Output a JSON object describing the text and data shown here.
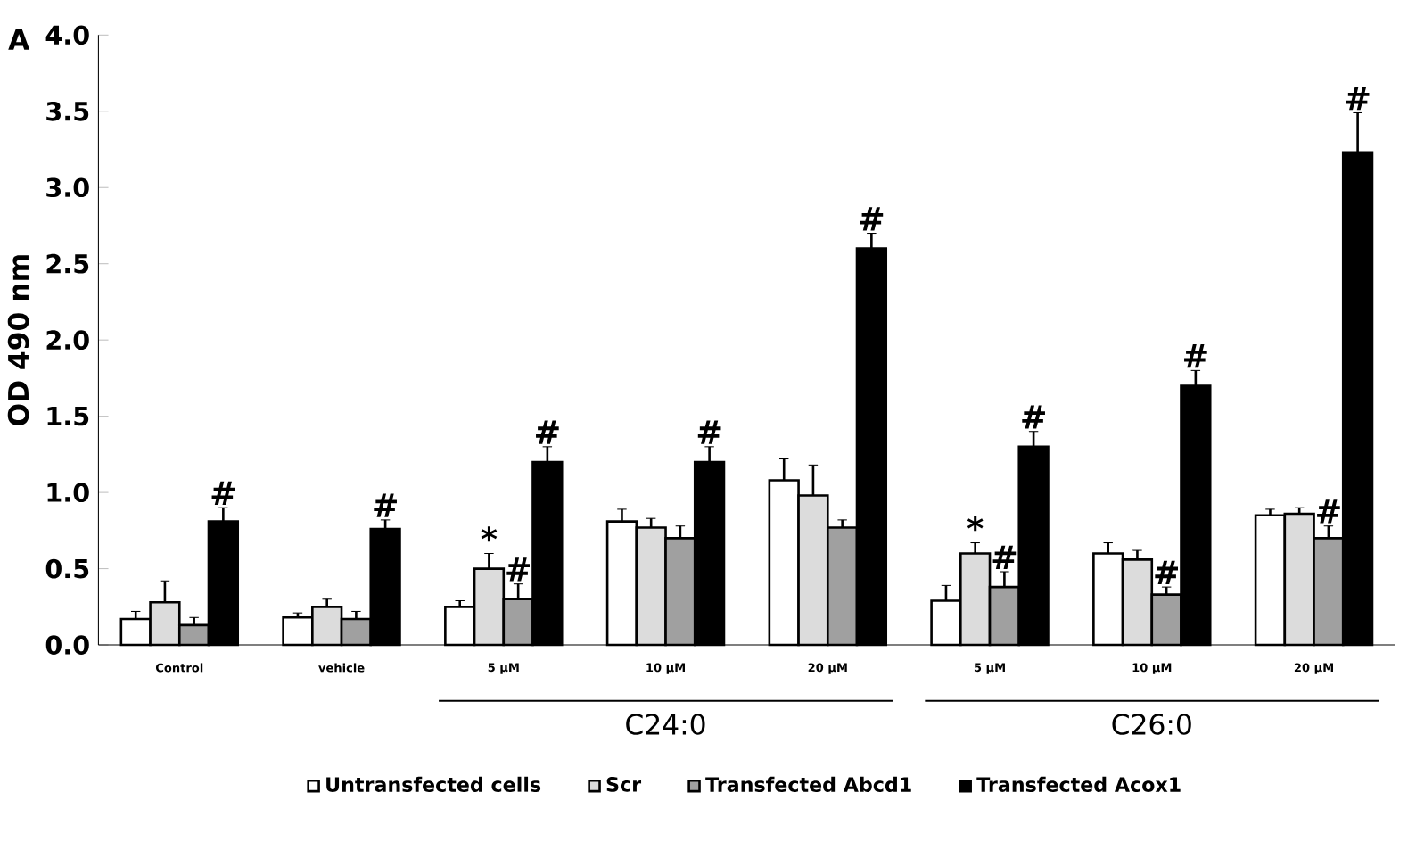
{
  "chart_data": {
    "type": "bar",
    "ylabel": "OD 490 nm",
    "categories": [
      "Control",
      "vehicle",
      "5 µM",
      "10 µM",
      "20 µM",
      "5 µM",
      "10 µM",
      "20 µM"
    ],
    "series": [
      {
        "name": "Untransfected cells",
        "color": "#ffffff",
        "values": [
          0.17,
          0.18,
          0.25,
          0.81,
          1.08,
          0.29,
          0.6,
          0.85
        ],
        "errors": [
          0.05,
          0.03,
          0.04,
          0.08,
          0.14,
          0.1,
          0.07,
          0.04
        ]
      },
      {
        "name": "Scr",
        "color": "#dcdcdc",
        "values": [
          0.28,
          0.25,
          0.5,
          0.77,
          0.98,
          0.6,
          0.56,
          0.86
        ],
        "errors": [
          0.14,
          0.05,
          0.1,
          0.06,
          0.2,
          0.07,
          0.06,
          0.04
        ],
        "value_labels": [
          null,
          null,
          "*",
          null,
          null,
          "*",
          null,
          null
        ]
      },
      {
        "name": "Transfected Abcd1",
        "color": "#a0a0a0",
        "values": [
          0.13,
          0.17,
          0.3,
          0.7,
          0.77,
          0.38,
          0.33,
          0.7
        ],
        "errors": [
          0.05,
          0.05,
          0.1,
          0.08,
          0.05,
          0.1,
          0.05,
          0.08
        ],
        "value_labels": [
          null,
          null,
          "#",
          null,
          null,
          "#",
          "#",
          "#"
        ]
      },
      {
        "name": "Transfected Acox1",
        "color": "#000000",
        "values": [
          0.81,
          0.76,
          1.2,
          1.2,
          2.6,
          1.3,
          1.7,
          3.23
        ],
        "errors": [
          0.09,
          0.06,
          0.1,
          0.1,
          0.1,
          0.1,
          0.1,
          0.26
        ],
        "value_labels": [
          "#",
          "#",
          "#",
          "#",
          "#",
          "#",
          "#",
          "#"
        ]
      }
    ],
    "ylim": [
      0,
      4
    ],
    "yticks": [
      {
        "value": 0,
        "label": "0.0"
      },
      {
        "value": 0.5,
        "label": "0.5"
      },
      {
        "value": 1,
        "label": "1.0"
      },
      {
        "value": 1.5,
        "label": "1.5"
      },
      {
        "value": 2,
        "label": "2.0"
      },
      {
        "value": 2.5,
        "label": "2.5"
      },
      {
        "value": 3,
        "label": "3.0"
      },
      {
        "value": 3.5,
        "label": "3.5"
      },
      {
        "value": 4,
        "label": "4.0"
      }
    ],
    "grid": false,
    "legend": "bottom",
    "annotations": [
      "A",
      "C24:0",
      "C26:0"
    ]
  }
}
